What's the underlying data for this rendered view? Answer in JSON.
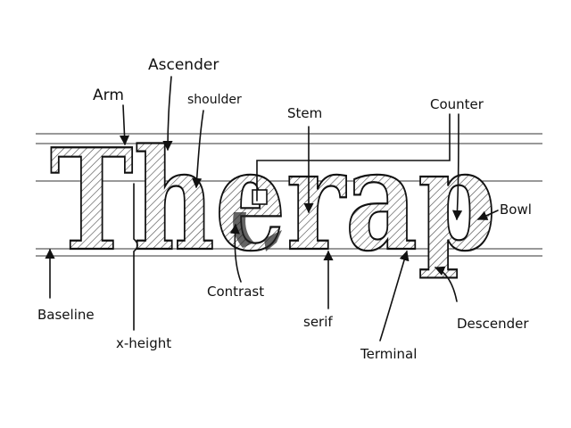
{
  "word": "Therap",
  "labels": {
    "arm": "Arm",
    "ascender": "Ascender",
    "shoulder": "shoulder",
    "stem": "Stem",
    "counter": "Counter",
    "bowl": "Bowl",
    "baseline": "Baseline",
    "x_height": "x-height",
    "contrast": "Contrast",
    "serif": "serif",
    "terminal": "Terminal",
    "descender": "Descender"
  },
  "colors": {
    "ink": "#111111",
    "paper": "#ffffff"
  }
}
